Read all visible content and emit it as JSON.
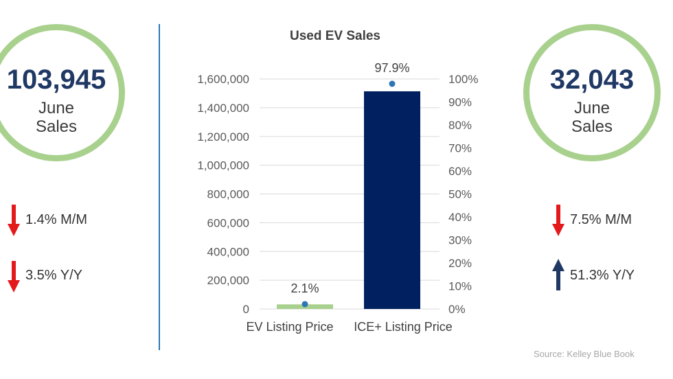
{
  "left_kpi": {
    "value": "103,945",
    "line1": "June",
    "line2": "Sales"
  },
  "right_kpi": {
    "value": "32,043",
    "line1": "June",
    "line2": "Sales"
  },
  "left_stats": [
    {
      "text": "1.4% M/M",
      "direction": "down",
      "color": "#e31a1c"
    },
    {
      "text": "3.5% Y/Y",
      "direction": "down",
      "color": "#e31a1c"
    }
  ],
  "right_stats": [
    {
      "text": "7.5% M/M",
      "direction": "down",
      "color": "#e31a1c"
    },
    {
      "text": "51.3% Y/Y",
      "direction": "up",
      "color": "#1f3864"
    }
  ],
  "source": "Source: Kelley Blue Book",
  "chart_data": {
    "type": "bar",
    "title": "Used EV Sales",
    "categories": [
      "EV Listing Price",
      "ICE+ Listing Price"
    ],
    "series": [
      {
        "axis": "left",
        "type": "bar",
        "values": [
          32043,
          1514000
        ],
        "colors": [
          "#a9d18e",
          "#002060"
        ]
      },
      {
        "axis": "right",
        "type": "scatter",
        "values": [
          2.1,
          97.9
        ],
        "labels": [
          "2.1%",
          "97.9%"
        ],
        "color": "#2e75b6"
      }
    ],
    "y_left": {
      "min": 0,
      "max": 1600000,
      "ticks": [
        "0",
        "200,000",
        "400,000",
        "600,000",
        "800,000",
        "1,000,000",
        "1,200,000",
        "1,400,000",
        "1,600,000"
      ]
    },
    "y_right": {
      "min": 0,
      "max": 100,
      "ticks": [
        "0%",
        "10%",
        "20%",
        "30%",
        "40%",
        "50%",
        "60%",
        "70%",
        "80%",
        "90%",
        "100%"
      ]
    },
    "grid": true,
    "legend": "none"
  }
}
